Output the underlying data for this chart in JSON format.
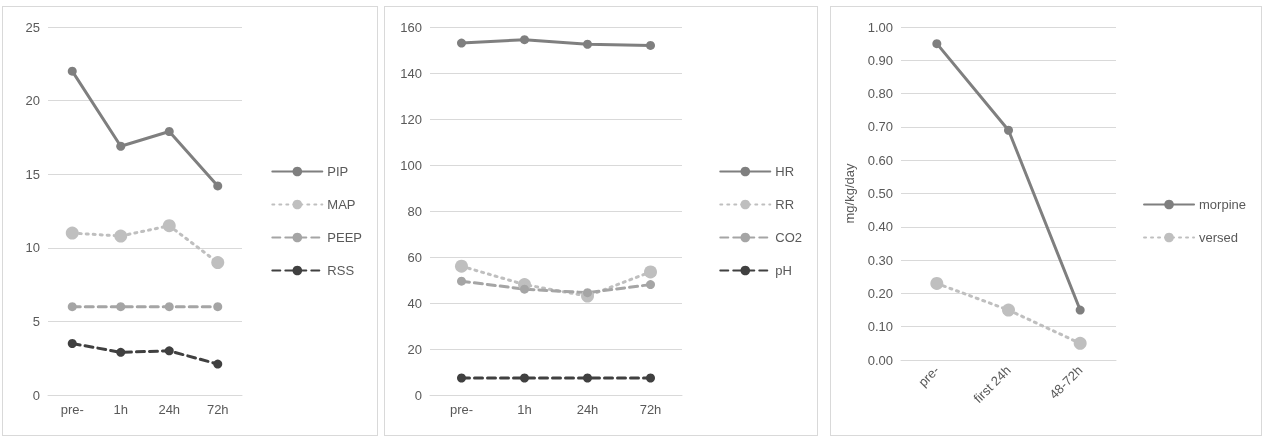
{
  "chart_data": [
    {
      "type": "line",
      "categories": [
        "pre-",
        "1h",
        "24h",
        "72h"
      ],
      "ylim": [
        0,
        25
      ],
      "yticks": [
        0,
        5,
        10,
        15,
        20,
        25
      ],
      "grid": "y",
      "legend": "right",
      "marker": "circle",
      "series": [
        {
          "name": "PIP",
          "color": "#7f7f7f",
          "line_style": "solid",
          "values": [
            22,
            16.9,
            17.9,
            14.2
          ]
        },
        {
          "name": "MAP",
          "color": "#bfbfbf",
          "line_style": "dotted",
          "values": [
            11,
            10.8,
            11.5,
            9
          ]
        },
        {
          "name": "PEEP",
          "color": "#a5a5a5",
          "line_style": "dashed",
          "values": [
            6,
            6,
            6,
            6
          ]
        },
        {
          "name": "RSS",
          "color": "#404040",
          "line_style": "dashed",
          "values": [
            3.5,
            2.9,
            3,
            2.1
          ]
        }
      ]
    },
    {
      "type": "line",
      "categories": [
        "pre-",
        "1h",
        "24h",
        "72h"
      ],
      "ylim": [
        0,
        160
      ],
      "yticks": [
        0,
        20,
        40,
        60,
        80,
        100,
        120,
        140,
        160
      ],
      "grid": "y",
      "legend": "right",
      "marker": "circle",
      "series": [
        {
          "name": "HR",
          "color": "#7f7f7f",
          "line_style": "solid",
          "values": [
            153,
            154.5,
            152.5,
            152
          ]
        },
        {
          "name": "RR",
          "color": "#bfbfbf",
          "line_style": "dotted",
          "values": [
            56,
            48,
            43,
            53.5
          ]
        },
        {
          "name": "CO2",
          "color": "#a5a5a5",
          "line_style": "dashed",
          "values": [
            49.5,
            46,
            44.5,
            48
          ]
        },
        {
          "name": "pH",
          "color": "#404040",
          "line_style": "dashed",
          "values": [
            7.4,
            7.4,
            7.4,
            7.4
          ]
        }
      ]
    },
    {
      "type": "line",
      "categories": [
        "pre-",
        "first 24h",
        "48-72h"
      ],
      "ylabel": "mg/kg/day",
      "ylim": [
        0,
        1
      ],
      "yticks": [
        {
          "value": 0,
          "label": "0.00"
        },
        {
          "value": 0.1,
          "label": "0.10"
        },
        {
          "value": 0.2,
          "label": "0.20"
        },
        {
          "value": 0.3,
          "label": "0.30"
        },
        {
          "value": 0.4,
          "label": "0.40"
        },
        {
          "value": 0.5,
          "label": "0.50"
        },
        {
          "value": 0.6,
          "label": "0.60"
        },
        {
          "value": 0.7,
          "label": "0.70"
        },
        {
          "value": 0.8,
          "label": "0.80"
        },
        {
          "value": 0.9,
          "label": "0.90"
        },
        {
          "value": 1,
          "label": "1.00"
        }
      ],
      "grid": "y",
      "legend": "right",
      "marker": "circle",
      "series": [
        {
          "name": "morpine",
          "color": "#7f7f7f",
          "line_style": "solid",
          "values": [
            0.95,
            0.69,
            0.15
          ]
        },
        {
          "name": "versed",
          "color": "#bfbfbf",
          "line_style": "dotted",
          "values": [
            0.23,
            0.15,
            0.05
          ]
        }
      ]
    }
  ]
}
